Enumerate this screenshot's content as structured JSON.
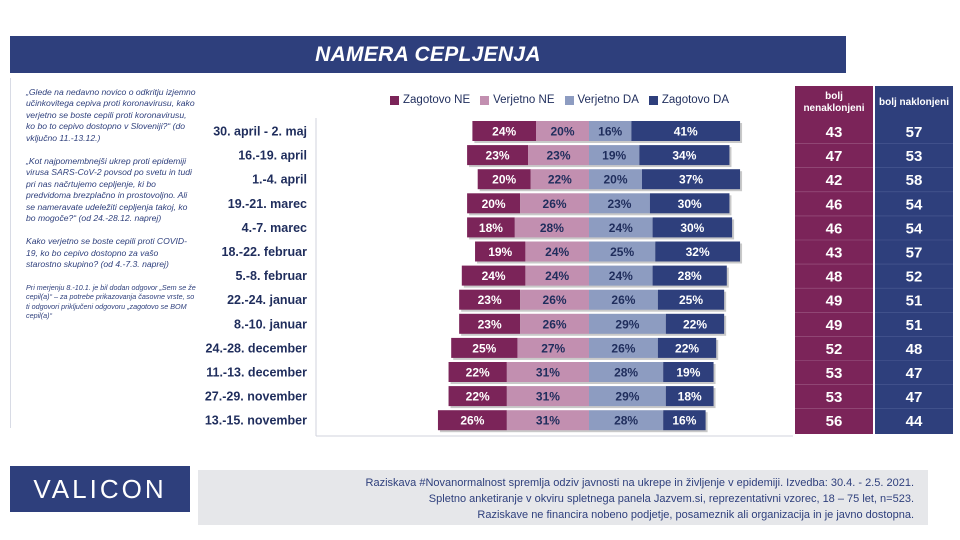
{
  "title": "NAMERA CEPLJENJA",
  "quotes": [
    "„Glede na nedavno novico o odkritju izjemno učinkovitega cepiva proti koronavirusu, kako verjetno se boste cepili proti koronavirusu, ko bo to cepivo dostopno v Sloveniji?“ (do vključno 11.-13.12.)",
    "„Kot najpomembnejši ukrep proti epidemiji virusa SARS-CoV-2 povsod po svetu in tudi pri nas načrtujemo cepljenje, ki bo predvidoma brezplačno in prostovoljno. Ali se nameravate udeležiti cepljenja takoj, ko bo mogoče?“ (od 24.-28.12. naprej)",
    "Kako verjetno se boste cepili proti COVID-19, ko bo cepivo dostopno za vašo starostno skupino? (od 4.-7.3. naprej)"
  ],
  "note": "Pri merjenju 8.-10.1. je bil dodan odgovor „Sem se že cepil(a)“ – za potrebe prikazovanja časovne vrste, so ti odgovori priključeni odgovoru „zagotovo se BOM cepil(a)“",
  "headers": {
    "ne": "bolj nenaklonjeni",
    "da": "bolj naklonjeni"
  },
  "logo": "VALICON",
  "footer": [
    "Raziskava #Novanormalnost spremlja odziv javnosti na ukrepe in življenje v epidemiji. Izvedba: 30.4. - 2.5. 2021.",
    "Spletno anketiranje v okviru spletnega panela Jazvem.si, reprezentativni vzorec, 18 – 75 let, n=523.",
    "Raziskave ne financira nobeno podjetje, posameznik ali organizacija in je javno dostopna."
  ],
  "colors": {
    "zagotovo_ne": "#7b2459",
    "verjetno_ne": "#c28fb0",
    "verjetno_da": "#8d9cc1",
    "zagotovo_da": "#2e3f7c",
    "text": "#1f2d5c"
  },
  "chart_data": {
    "type": "bar",
    "orientation": "horizontal",
    "stacked": "diverging",
    "categories": [
      "30. april - 2. maj",
      "16.-19. april",
      "1.-4. april",
      "19.-21. marec",
      "4.-7. marec",
      "18.-22. februar",
      "5.-8. februar",
      "22.-24. januar",
      "8.-10. januar",
      "24.-28. december",
      "11.-13. december",
      "27.-29. november",
      "13.-15. november"
    ],
    "series": [
      {
        "name": "Zagotovo NE",
        "values": [
          24,
          23,
          20,
          20,
          18,
          19,
          24,
          23,
          23,
          25,
          22,
          22,
          26
        ]
      },
      {
        "name": "Verjetno NE",
        "values": [
          20,
          23,
          22,
          26,
          28,
          24,
          24,
          26,
          26,
          27,
          31,
          31,
          31
        ]
      },
      {
        "name": "Verjetno DA",
        "values": [
          16,
          19,
          20,
          23,
          24,
          25,
          24,
          26,
          29,
          26,
          28,
          29,
          28
        ]
      },
      {
        "name": "Zagotovo DA",
        "values": [
          41,
          34,
          37,
          30,
          30,
          32,
          28,
          25,
          22,
          22,
          19,
          18,
          16
        ]
      }
    ],
    "value_suffix": "%",
    "summary": {
      "bolj_nenaklonjeni": [
        43,
        47,
        42,
        46,
        46,
        43,
        48,
        49,
        49,
        52,
        53,
        53,
        56
      ],
      "bolj_naklonjeni": [
        57,
        53,
        58,
        54,
        54,
        57,
        52,
        51,
        51,
        48,
        47,
        47,
        44
      ]
    },
    "legend_position": "top"
  }
}
